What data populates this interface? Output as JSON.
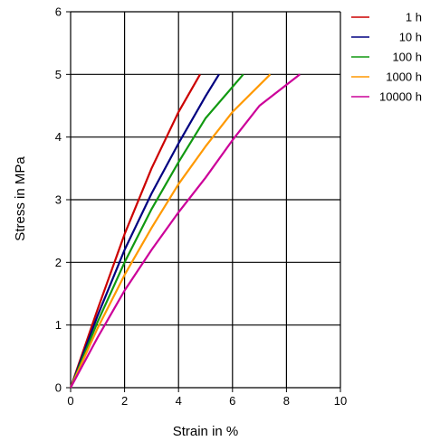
{
  "chart_data": {
    "type": "line",
    "title": "",
    "xlabel": "Strain in %",
    "ylabel": "Stress in MPa",
    "xlim": [
      0,
      10
    ],
    "ylim": [
      0,
      6
    ],
    "xticks": [
      "0",
      "2",
      "4",
      "6",
      "8",
      "10"
    ],
    "yticks": [
      "0",
      "1",
      "2",
      "3",
      "4",
      "5",
      "6"
    ],
    "grid": true,
    "legend_position": "right",
    "series": [
      {
        "name": "1 h",
        "color": "#cc0000",
        "x": [
          0,
          1,
          2,
          3,
          4,
          4.8
        ],
        "y": [
          0,
          1.25,
          2.45,
          3.5,
          4.4,
          5.0
        ]
      },
      {
        "name": "10 h",
        "color": "#000080",
        "x": [
          0,
          1,
          2,
          3,
          4,
          5,
          5.5
        ],
        "y": [
          0,
          1.15,
          2.2,
          3.1,
          3.9,
          4.65,
          5.0
        ]
      },
      {
        "name": "100 h",
        "color": "#119911",
        "x": [
          0,
          1,
          2,
          3,
          4,
          5,
          6.4
        ],
        "y": [
          0,
          1.05,
          2.0,
          2.85,
          3.6,
          4.3,
          5.0
        ]
      },
      {
        "name": "1000 h",
        "color": "#ff9900",
        "x": [
          0,
          1,
          2,
          3,
          4,
          5,
          6,
          7.4
        ],
        "y": [
          0,
          0.95,
          1.8,
          2.55,
          3.25,
          3.85,
          4.4,
          5.0
        ]
      },
      {
        "name": "10000 h",
        "color": "#cc0099",
        "x": [
          0,
          1,
          2,
          3,
          4,
          5,
          6,
          7,
          8.5
        ],
        "y": [
          0,
          0.8,
          1.55,
          2.2,
          2.8,
          3.35,
          3.95,
          4.5,
          5.0
        ]
      }
    ]
  }
}
